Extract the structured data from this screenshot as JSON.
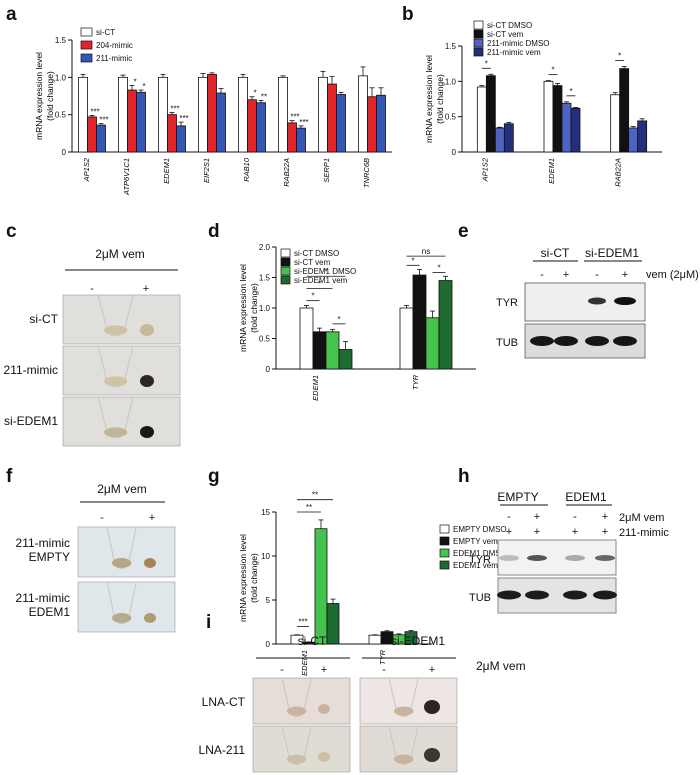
{
  "panel_labels": [
    "a",
    "b",
    "c",
    "d",
    "e",
    "f",
    "g",
    "h",
    "i"
  ],
  "colors": {
    "white": "#ffffff",
    "red": "#e0262a",
    "blue": "#3457b5",
    "black": "#111111",
    "mid_blue": "#4e63c4",
    "dark_blue": "#232f7c",
    "light_green": "#46c24f",
    "dark_green": "#1e6b31",
    "tube_bg": "#e2e0df"
  },
  "chart_data": [
    {
      "panel": "a",
      "type": "bar",
      "ylabel": "mRNA expression level\n(fold change)",
      "ylim": [
        0,
        1.5
      ],
      "yticks": [
        "0",
        "0.5",
        "1.0",
        "1.5"
      ],
      "categories": [
        "AP1S2",
        "ATP6V1C1",
        "EDEM1",
        "EIF2S1",
        "RAB10",
        "RAB22A",
        "SERP1",
        "TNRC6B"
      ],
      "series": [
        {
          "name": "si-CT",
          "color": "#ffffff",
          "values": [
            1.0,
            1.0,
            1.0,
            1.0,
            1.0,
            1.0,
            1.0,
            1.02
          ],
          "errors": [
            0.04,
            0.03,
            0.04,
            0.05,
            0.04,
            0.02,
            0.08,
            0.12
          ]
        },
        {
          "name": "204-mimic",
          "color": "#e0262a",
          "values": [
            0.47,
            0.83,
            0.5,
            1.04,
            0.7,
            0.39,
            0.91,
            0.74
          ],
          "errors": [
            0.02,
            0.06,
            0.03,
            0.02,
            0.04,
            0.03,
            0.1,
            0.12
          ]
        },
        {
          "name": "211-mimic",
          "color": "#3457b5",
          "values": [
            0.36,
            0.8,
            0.35,
            0.79,
            0.66,
            0.32,
            0.77,
            0.76
          ],
          "errors": [
            0.02,
            0.03,
            0.05,
            0.06,
            0.03,
            0.03,
            0.03,
            0.1
          ]
        }
      ],
      "annotations": [
        {
          "cat": 0,
          "series": 1,
          "text": "***"
        },
        {
          "cat": 0,
          "series": 2,
          "text": "***"
        },
        {
          "cat": 1,
          "series": 1,
          "text": "*"
        },
        {
          "cat": 1,
          "series": 2,
          "text": "*"
        },
        {
          "cat": 2,
          "series": 1,
          "text": "***"
        },
        {
          "cat": 2,
          "series": 2,
          "text": "***"
        },
        {
          "cat": 4,
          "series": 1,
          "text": "*"
        },
        {
          "cat": 4,
          "series": 2,
          "text": "**"
        },
        {
          "cat": 5,
          "series": 1,
          "text": "***"
        },
        {
          "cat": 5,
          "series": 2,
          "text": "***"
        }
      ]
    },
    {
      "panel": "b",
      "type": "bar",
      "ylabel": "mRNA expression level\n(fold change)",
      "ylim": [
        0,
        1.5
      ],
      "yticks": [
        "0",
        "0.5",
        "1.0",
        "1.5"
      ],
      "categories": [
        "AP1S2",
        "EDEM1",
        "RAB22A"
      ],
      "series": [
        {
          "name": "si-CT DMSO",
          "color": "#ffffff",
          "values": [
            0.92,
            1.0,
            0.81
          ],
          "errors": [
            0.02,
            0.01,
            0.03
          ]
        },
        {
          "name": "si-CT vem",
          "color": "#111111",
          "values": [
            1.08,
            0.94,
            1.18
          ],
          "errors": [
            0.02,
            0.03,
            0.03
          ]
        },
        {
          "name": "211-mimic DMSO",
          "color": "#4e63c4",
          "values": [
            0.34,
            0.69,
            0.34
          ],
          "errors": [
            0.01,
            0.02,
            0.02
          ]
        },
        {
          "name": "211-mimic vem",
          "color": "#232f7c",
          "values": [
            0.4,
            0.62,
            0.44
          ],
          "errors": [
            0.02,
            0.01,
            0.03
          ]
        }
      ],
      "brackets": [
        {
          "cat": 0,
          "from": 0,
          "to": 1,
          "text": "*"
        },
        {
          "cat": 1,
          "from": 0,
          "to": 1,
          "text": "*"
        },
        {
          "cat": 1,
          "from": 2,
          "to": 3,
          "text": "*"
        },
        {
          "cat": 2,
          "from": 0,
          "to": 1,
          "text": "*"
        }
      ]
    },
    {
      "panel": "d",
      "type": "bar",
      "ylabel": "mRNA expression level\n(fold change)",
      "ylim": [
        0,
        2.0
      ],
      "yticks": [
        "0",
        "0.5",
        "1.0",
        "1.5",
        "2.0"
      ],
      "categories": [
        "EDEM1",
        "TYR"
      ],
      "series": [
        {
          "name": "si-CT DMSO",
          "color": "#ffffff",
          "values": [
            1.0,
            1.0
          ],
          "errors": [
            0.04,
            0.04
          ]
        },
        {
          "name": "si-CT vem",
          "color": "#111111",
          "values": [
            0.61,
            1.54
          ],
          "errors": [
            0.06,
            0.09
          ]
        },
        {
          "name": "si-EDEM1 DMSO",
          "color": "#46c24f",
          "values": [
            0.61,
            0.84
          ],
          "errors": [
            0.04,
            0.11
          ]
        },
        {
          "name": "si-EDEM1 vem",
          "color": "#1e6b31",
          "values": [
            0.32,
            1.45
          ],
          "errors": [
            0.13,
            0.07
          ]
        }
      ],
      "brackets": [
        {
          "cat": 0,
          "from": 0,
          "to": 1,
          "text": "*",
          "level": 1.12
        },
        {
          "cat": 0,
          "from": 0,
          "to": 2,
          "text": "*",
          "level": 1.32
        },
        {
          "cat": 0,
          "from": 0,
          "to": 3,
          "text": "*",
          "level": 1.52
        },
        {
          "cat": 0,
          "from": 2,
          "to": 3,
          "text": "*",
          "level": 0.74
        },
        {
          "cat": 1,
          "from": 0,
          "to": 1,
          "text": "*",
          "level": 1.7
        },
        {
          "cat": 1,
          "from": 2,
          "to": 3,
          "text": "*",
          "level": 1.58
        },
        {
          "cat": 1,
          "from": 0,
          "to": 3,
          "text": "ns",
          "level": 1.85
        }
      ]
    },
    {
      "panel": "g",
      "type": "bar",
      "ylabel": "mRNA expression level\n(fold change)",
      "ylim": [
        0,
        15
      ],
      "yticks": [
        "0",
        "5",
        "10",
        "15"
      ],
      "categories": [
        "EDEM1",
        "TYR"
      ],
      "series": [
        {
          "name": "EMPTY DMSO",
          "color": "#ffffff",
          "values": [
            1.0,
            1.0
          ],
          "errors": [
            0.05,
            0.05
          ]
        },
        {
          "name": "EMPTY vem",
          "color": "#111111",
          "values": [
            0.2,
            1.4
          ],
          "errors": [
            0.03,
            0.1
          ]
        },
        {
          "name": "EDEM1 DMSO",
          "color": "#46c24f",
          "values": [
            13.1,
            1.05
          ],
          "errors": [
            1.0,
            0.1
          ]
        },
        {
          "name": "EDEM1 vem",
          "color": "#1e6b31",
          "values": [
            4.6,
            1.4
          ],
          "errors": [
            0.5,
            0.12
          ]
        }
      ],
      "brackets": [
        {
          "cat": 0,
          "from": 0,
          "to": 1,
          "text": "***",
          "level": 2.0
        },
        {
          "cat": 0,
          "from": 0,
          "to": 2,
          "text": "**",
          "level": 15.0
        },
        {
          "cat": 0,
          "from": 0,
          "to": 3,
          "text": "**",
          "level": 16.4
        }
      ]
    }
  ],
  "panel_c": {
    "treatment": "2μM vem",
    "cols": [
      "-",
      "+"
    ],
    "rows": [
      "si-CT",
      "211-mimic",
      "si-EDEM1"
    ]
  },
  "panel_e": {
    "groups": [
      "si-CT",
      "si-EDEM1"
    ],
    "treatment": "vem (2μM)",
    "lanes": [
      "-",
      "+",
      "-",
      "+"
    ],
    "bands": [
      "TYR",
      "TUB"
    ]
  },
  "panel_f": {
    "treatment": "2μM vem",
    "cols": [
      "-",
      "+"
    ],
    "rows": [
      "211-mimic\nEMPTY",
      "211-mimic\nEDEM1"
    ]
  },
  "panel_h": {
    "groups": [
      "EMPTY",
      "EDEM1"
    ],
    "row1_label": "2μM vem",
    "row1": [
      "-",
      "+",
      "-",
      "+"
    ],
    "row2_label": "211-mimic",
    "row2": [
      "+",
      "+",
      "+",
      "+"
    ],
    "bands": [
      "TYR",
      "TUB"
    ]
  },
  "panel_i": {
    "groups": [
      "si-CT",
      "si-EDEM1"
    ],
    "treatment": "2μM vem",
    "cols": [
      "-",
      "+",
      "-",
      "+"
    ],
    "rows": [
      "LNA-CT",
      "LNA-211"
    ]
  }
}
